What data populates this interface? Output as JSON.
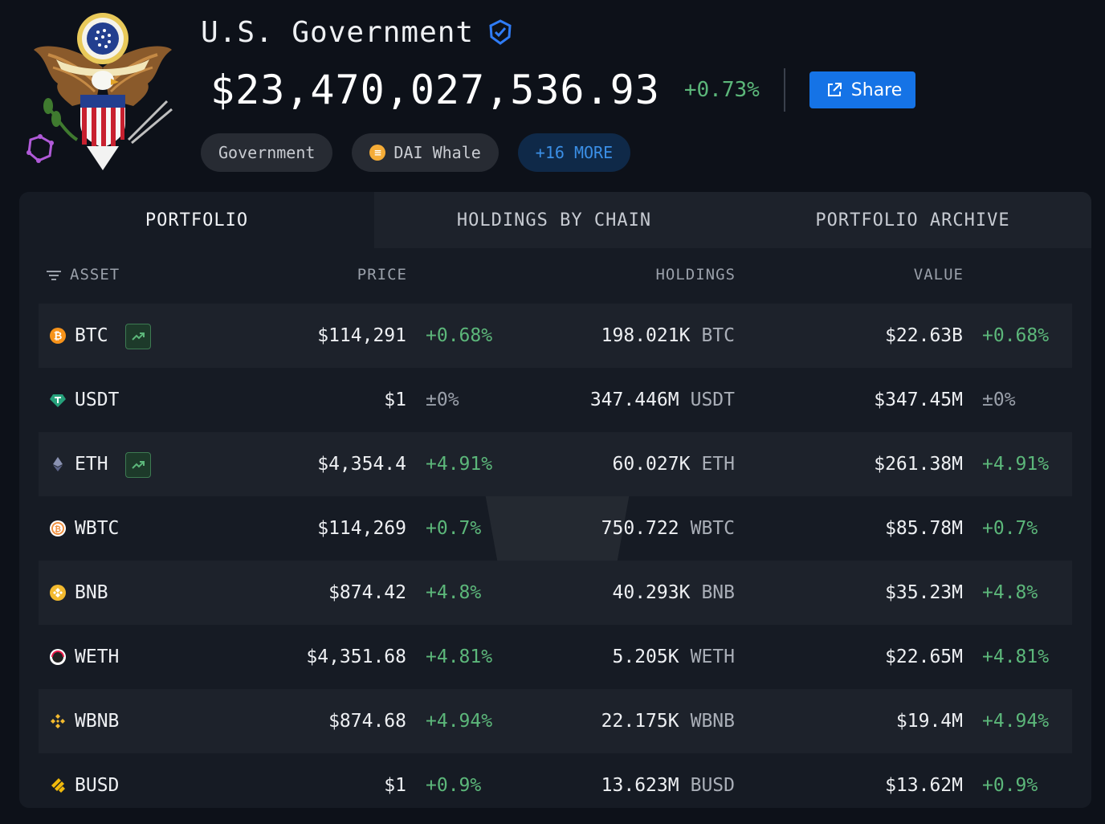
{
  "entity": {
    "name": "U.S. Government",
    "total_value": "$23,470,027,536.93",
    "total_change": "+0.73%",
    "share_label": "Share",
    "tags": [
      {
        "label": "Government"
      },
      {
        "label": "DAI Whale",
        "icon": "dai-icon"
      },
      {
        "label": "+16 MORE"
      }
    ]
  },
  "tabs": [
    {
      "label": "PORTFOLIO",
      "active": true
    },
    {
      "label": "HOLDINGS BY CHAIN",
      "active": false
    },
    {
      "label": "PORTFOLIO ARCHIVE",
      "active": false
    }
  ],
  "columns": {
    "asset": "ASSET",
    "price": "PRICE",
    "holdings": "HOLDINGS",
    "value": "VALUE"
  },
  "assets": [
    {
      "symbol": "BTC",
      "price": "$114,291",
      "price_change": "+0.68%",
      "holdings": "198.021K",
      "unit": "BTC",
      "value": "$22.63B",
      "value_change": "+0.68%",
      "trend": true,
      "icon": "bitcoin-icon",
      "color": "#f7931a"
    },
    {
      "symbol": "USDT",
      "price": "$1",
      "price_change": "±0%",
      "holdings": "347.446M",
      "unit": "USDT",
      "value": "$347.45M",
      "value_change": "±0%",
      "trend": false,
      "icon": "tether-icon",
      "color": "#26a17b"
    },
    {
      "symbol": "ETH",
      "price": "$4,354.4",
      "price_change": "+4.91%",
      "holdings": "60.027K",
      "unit": "ETH",
      "value": "$261.38M",
      "value_change": "+4.91%",
      "trend": true,
      "icon": "ethereum-icon",
      "color": "#8a92b2"
    },
    {
      "symbol": "WBTC",
      "price": "$114,269",
      "price_change": "+0.7%",
      "holdings": "750.722",
      "unit": "WBTC",
      "value": "$85.78M",
      "value_change": "+0.7%",
      "trend": false,
      "icon": "wbtc-icon",
      "color": "#f09242"
    },
    {
      "symbol": "BNB",
      "price": "$874.42",
      "price_change": "+4.8%",
      "holdings": "40.293K",
      "unit": "BNB",
      "value": "$35.23M",
      "value_change": "+4.8%",
      "trend": false,
      "icon": "bnb-icon",
      "color": "#f3ba2f"
    },
    {
      "symbol": "WETH",
      "price": "$4,351.68",
      "price_change": "+4.81%",
      "holdings": "5.205K",
      "unit": "WETH",
      "value": "$22.65M",
      "value_change": "+4.81%",
      "trend": false,
      "icon": "weth-icon",
      "color": "#ec1c4c"
    },
    {
      "symbol": "WBNB",
      "price": "$874.68",
      "price_change": "+4.94%",
      "holdings": "22.175K",
      "unit": "WBNB",
      "value": "$19.4M",
      "value_change": "+4.94%",
      "trend": false,
      "icon": "wbnb-icon",
      "color": "#f3ba2f"
    },
    {
      "symbol": "BUSD",
      "price": "$1",
      "price_change": "+0.9%",
      "holdings": "13.623M",
      "unit": "BUSD",
      "value": "$13.62M",
      "value_change": "+0.9%",
      "trend": false,
      "icon": "busd-icon",
      "color": "#f0b90b"
    }
  ]
}
